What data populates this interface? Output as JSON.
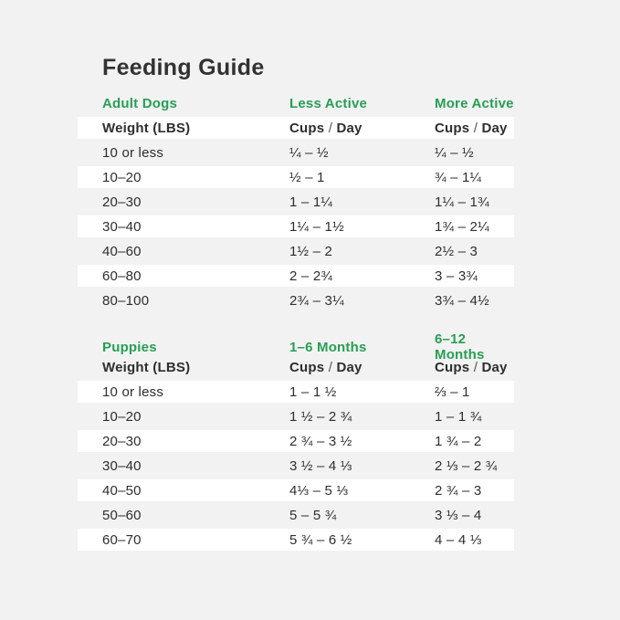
{
  "page": {
    "title": "Feeding Guide",
    "background_color": "#f2f2f2",
    "stripe_color": "#ffffff",
    "accent_green": "#289e55",
    "text_color": "#2e2e2e"
  },
  "labels": {
    "weight": "Weight (LBS)",
    "cups": "Cups",
    "slash": "/",
    "day": "Day"
  },
  "tables": [
    {
      "section": "Adult Dogs",
      "col2_header": "Less Active",
      "col3_header": "More Active",
      "subheader_col1": "Weight (LBS)",
      "subheader_col2": "Cups / Day",
      "subheader_col3": "Cups / Day",
      "rows": [
        {
          "weight": "10 or less",
          "col2": "¼ – ½",
          "col3": "¼ – ½"
        },
        {
          "weight": "10–20",
          "col2": "½ – 1",
          "col3": "¾ – 1¼"
        },
        {
          "weight": "20–30",
          "col2": "1 – 1¼",
          "col3": "1¼ – 1¾"
        },
        {
          "weight": "30–40",
          "col2": "1¼ – 1½",
          "col3": "1¾ – 2¼"
        },
        {
          "weight": "40–60",
          "col2": "1½ – 2",
          "col3": "2½ – 3"
        },
        {
          "weight": "60–80",
          "col2": "2 – 2¾",
          "col3": "3 – 3¾"
        },
        {
          "weight": "80–100",
          "col2": "2¾ – 3¼",
          "col3": "3¾ – 4½"
        }
      ]
    },
    {
      "section": "Puppies",
      "col2_header": "1–6 Months",
      "col3_header": "6–12 Months",
      "subheader_col1": "Weight (LBS)",
      "subheader_col2": "Cups / Day",
      "subheader_col3": "Cups / Day",
      "rows": [
        {
          "weight": "10 or less",
          "col2": "1 – 1 ½",
          "col3": "⅔ – 1"
        },
        {
          "weight": "10–20",
          "col2": "1 ½ – 2 ¾",
          "col3": "1 – 1 ¾"
        },
        {
          "weight": "20–30",
          "col2": "2 ¾ – 3 ½",
          "col3": "1 ¾ – 2"
        },
        {
          "weight": "30–40",
          "col2": "3 ½ – 4 ⅓",
          "col3": "2 ⅓ – 2 ¾"
        },
        {
          "weight": "40–50",
          "col2": "4⅓ – 5 ⅓",
          "col3": "2 ¾ – 3"
        },
        {
          "weight": "50–60",
          "col2": "5 – 5 ¾",
          "col3": "3 ⅓ – 4"
        },
        {
          "weight": "60–70",
          "col2": "5 ¾ – 6 ½",
          "col3": "4 – 4 ⅓"
        }
      ]
    }
  ]
}
